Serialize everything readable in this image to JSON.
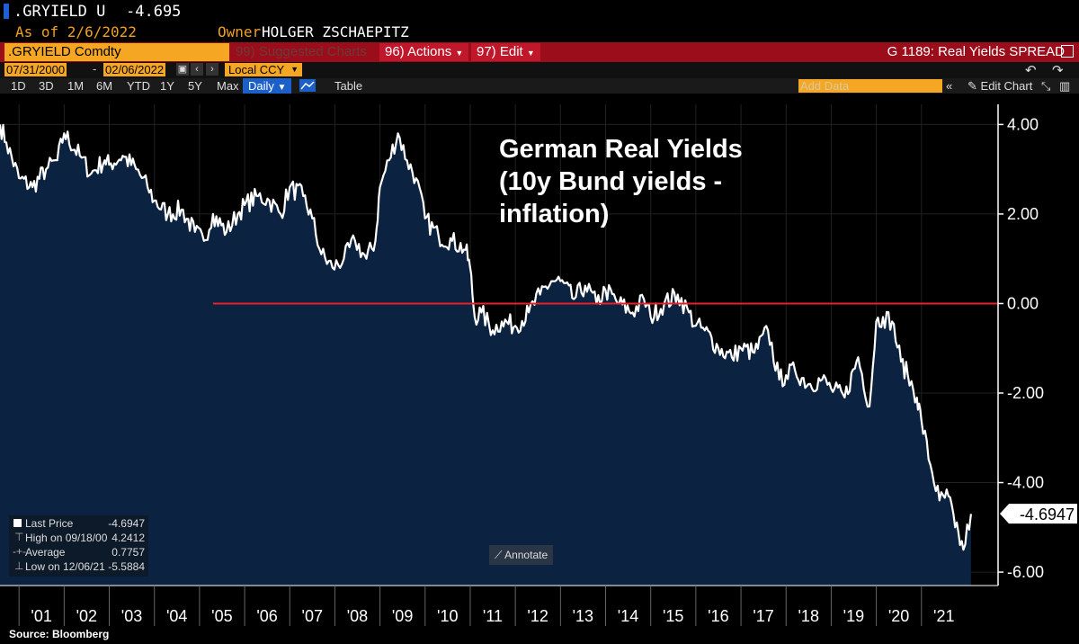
{
  "header": {
    "ticker": ".GRYIELD U",
    "last_value": "-4.695",
    "as_of": "As of 2/6/2022",
    "owner_label": "Owner",
    "owner_name": "HOLGER ZSCHAEPITZ"
  },
  "toolbar": {
    "security": ".GRYIELD Comdty",
    "suggested": "99) Suggested Charts",
    "actions": "96) Actions",
    "edit": "97) Edit",
    "graph_title": "G 1189: Real Yields SPREAD",
    "date_start": "07/31/2000",
    "date_end": "02/06/2022",
    "currency": "Local CCY",
    "ranges": [
      "1D",
      "3D",
      "1M",
      "6M",
      "YTD",
      "1Y",
      "5Y",
      "Max"
    ],
    "frequency": "Daily",
    "table": "Table",
    "add_data": "Add Data",
    "edit_chart": "Edit Chart"
  },
  "legend": {
    "last_price_label": "Last Price",
    "last_price_value": "-4.6947",
    "high_label": "High on 09/18/00",
    "high_value": "4.2412",
    "average_label": "Average",
    "average_value": "0.7757",
    "low_label": "Low on 12/06/21",
    "low_value": "-5.5884"
  },
  "annotate": "Annotate",
  "source": "Source: Bloomberg",
  "colors": {
    "fill": "#0b2240",
    "line": "#ffffff",
    "zero_line": "#e8202a",
    "accent": "#f5a623",
    "bar": "#9b0d1a"
  },
  "chart_data": {
    "type": "area",
    "title": "German Real Yields (10y Bund yields - inflation)",
    "title_lines": [
      "German Real Yields",
      "(10y Bund yields -",
      "inflation)"
    ],
    "x": [
      2000.58,
      2000.72,
      2001.0,
      2001.3,
      2001.6,
      2001.85,
      2002.0,
      2002.35,
      2002.6,
      2002.9,
      2003.0,
      2003.3,
      2003.6,
      2003.85,
      2004.0,
      2004.3,
      2004.6,
      2004.9,
      2005.1,
      2005.3,
      2005.6,
      2005.85,
      2006.0,
      2006.3,
      2006.55,
      2006.8,
      2007.0,
      2007.3,
      2007.5,
      2007.7,
      2007.95,
      2008.2,
      2008.45,
      2008.7,
      2008.9,
      2009.0,
      2009.2,
      2009.4,
      2009.6,
      2009.8,
      2010.0,
      2010.3,
      2010.6,
      2010.9,
      2011.0,
      2011.1,
      2011.25,
      2011.5,
      2011.7,
      2012.0,
      2012.3,
      2012.55,
      2012.8,
      2013.0,
      2013.3,
      2013.55,
      2013.8,
      2014.0,
      2014.3,
      2014.6,
      2014.85,
      2015.0,
      2015.3,
      2015.6,
      2015.85,
      2016.0,
      2016.2,
      2016.5,
      2016.8,
      2017.0,
      2017.3,
      2017.6,
      2017.85,
      2018.0,
      2018.2,
      2018.5,
      2018.8,
      2019.0,
      2019.3,
      2019.6,
      2019.85,
      2020.0,
      2020.15,
      2020.35,
      2020.55,
      2020.7,
      2020.9,
      2021.0,
      2021.2,
      2021.4,
      2021.6,
      2021.75,
      2021.93,
      2022.1
    ],
    "y": [
      4.0,
      3.6,
      2.8,
      2.6,
      3.0,
      3.2,
      3.8,
      3.3,
      2.9,
      3.2,
      3.1,
      3.3,
      3.0,
      2.6,
      2.3,
      2.0,
      2.1,
      1.6,
      1.4,
      2.0,
      1.6,
      2.0,
      2.2,
      2.4,
      2.3,
      2.0,
      2.6,
      2.4,
      1.9,
      1.1,
      0.8,
      1.0,
      1.4,
      1.0,
      1.4,
      2.6,
      3.2,
      3.8,
      3.2,
      2.8,
      1.9,
      1.5,
      1.4,
      1.2,
      0.8,
      -0.3,
      -0.2,
      -0.6,
      -0.4,
      -0.5,
      -0.2,
      0.2,
      0.5,
      0.5,
      0.1,
      0.4,
      0.0,
      0.3,
      0.0,
      -0.2,
      0.1,
      -0.3,
      0.0,
      0.2,
      -0.2,
      -0.5,
      -0.6,
      -1.0,
      -1.2,
      -1.0,
      -1.1,
      -0.6,
      -1.7,
      -1.6,
      -1.5,
      -1.8,
      -1.7,
      -1.9,
      -2.1,
      -1.2,
      -2.3,
      -0.4,
      -0.3,
      -0.4,
      -1.3,
      -1.6,
      -2.1,
      -2.6,
      -3.6,
      -4.4,
      -4.3,
      -5.0,
      -5.5,
      -4.7
    ],
    "xticks": [
      "'01",
      "'02",
      "'03",
      "'04",
      "'05",
      "'06",
      "'07",
      "'08",
      "'09",
      "'10",
      "'11",
      "'12",
      "'13",
      "'14",
      "'15",
      "'16",
      "'17",
      "'18",
      "'19",
      "'20",
      "'21"
    ],
    "xtick_values": [
      2001.5,
      2002.5,
      2003.5,
      2004.5,
      2005.5,
      2006.5,
      2007.5,
      2008.5,
      2009.5,
      2010.5,
      2011.5,
      2012.5,
      2013.5,
      2014.5,
      2015.5,
      2016.5,
      2017.5,
      2018.5,
      2019.5,
      2020.5,
      2021.5
    ],
    "yticks": [
      "4.00",
      "2.00",
      "0.00",
      "-2.00",
      "-4.00",
      "-6.00"
    ],
    "ytick_values": [
      4,
      2,
      0,
      -2,
      -4,
      -6
    ],
    "ylim": [
      -6.3,
      4.45
    ],
    "xlim": [
      2000.58,
      2022.7
    ],
    "last_label": "-4.6947",
    "last_value": -4.6947,
    "reference_line": {
      "y": 0,
      "x_start": 2005.3,
      "x_end": 2022.7
    },
    "grid": true,
    "legend_position": "bottom-left"
  }
}
